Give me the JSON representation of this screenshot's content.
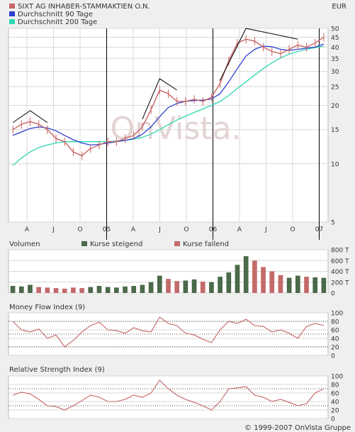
{
  "currency": "EUR",
  "copyright": "© 1999-2007 OnVista Gruppe",
  "watermark": "OnVista.",
  "colors": {
    "price": "#c86464",
    "ma90": "#2b3fcf",
    "ma200": "#2fd6b2",
    "rising": "#4a6a4a",
    "falling": "#c46a6a",
    "plot_bg": "#ffffff",
    "grid": "#d8d8d8"
  },
  "chart_data": [
    {
      "type": "line",
      "title": "",
      "legend": [
        {
          "label": "SIXT AG INHABER-STAMMAKTIEN O.N.",
          "color": "#c86464"
        },
        {
          "label": "Durchschnitt 90 Tage",
          "color": "#2b3fcf"
        },
        {
          "label": "Durchschnitt 200 Tage",
          "color": "#2fd6b2"
        }
      ],
      "y_scale": "log",
      "ylim": [
        5,
        50
      ],
      "y_ticks": [
        5,
        10,
        15,
        20,
        25,
        30,
        35,
        40,
        45,
        50
      ],
      "x_ticks": [
        "A",
        "J",
        "O",
        "05",
        "A",
        "J",
        "O",
        "06",
        "A",
        "J",
        "O",
        "07"
      ],
      "x": [
        "2004-01",
        "2004-02",
        "2004-03",
        "2004-04",
        "2004-05",
        "2004-06",
        "2004-07",
        "2004-08",
        "2004-09",
        "2004-10",
        "2004-11",
        "2004-12",
        "2005-01",
        "2005-02",
        "2005-03",
        "2005-04",
        "2005-05",
        "2005-06",
        "2005-07",
        "2005-08",
        "2005-09",
        "2005-10",
        "2005-11",
        "2005-12",
        "2006-01",
        "2006-02",
        "2006-03",
        "2006-04",
        "2006-05",
        "2006-06",
        "2006-07",
        "2006-08",
        "2006-09",
        "2006-10",
        "2006-11",
        "2006-12",
        "2007-01"
      ],
      "series": [
        {
          "name": "SIXT AG INHABER-STAMMAKTIEN O.N.",
          "values": [
            15,
            16,
            16.5,
            16,
            15,
            13.5,
            13,
            11.5,
            11,
            12,
            12.5,
            13,
            13,
            13.5,
            14,
            15.5,
            19,
            24,
            23,
            21,
            21,
            21.5,
            21,
            22,
            26,
            34,
            42,
            44,
            43,
            40,
            38,
            37,
            39,
            41,
            40,
            42,
            45
          ]
        },
        {
          "name": "Durchschnitt 90 Tage",
          "values": [
            14,
            14.6,
            15.2,
            15.5,
            15.3,
            14.8,
            14,
            13.3,
            12.8,
            12.5,
            12.6,
            12.8,
            13,
            13.2,
            13.5,
            14.2,
            15.5,
            17.5,
            19.5,
            20.5,
            21,
            21.2,
            21.3,
            21.6,
            23,
            26.5,
            31,
            36,
            39,
            40.5,
            40.2,
            39,
            38.5,
            39,
            39.5,
            40,
            41.5
          ]
        },
        {
          "name": "Durchschnitt 200 Tage",
          "values": [
            9.8,
            10.7,
            11.5,
            12.1,
            12.5,
            12.8,
            13,
            13,
            13,
            13,
            13,
            13,
            13.1,
            13.2,
            13.4,
            13.7,
            14.2,
            15,
            15.9,
            16.8,
            17.6,
            18.4,
            19.2,
            20,
            21,
            22.5,
            24.5,
            26.5,
            28.7,
            31,
            33.2,
            35.2,
            36.8,
            38,
            39,
            39.8,
            40.5
          ]
        }
      ],
      "trend_lines": [
        {
          "x": [
            "2004-01",
            "2004-03",
            "2004-05"
          ],
          "y": [
            16.3,
            18.8,
            16.3
          ]
        },
        {
          "x": [
            "2005-04",
            "2005-06",
            "2005-08"
          ],
          "y": [
            17,
            27.5,
            24
          ]
        },
        {
          "x": [
            "2006-01",
            "2006-04",
            "2006-10"
          ],
          "y": [
            27,
            50,
            44
          ]
        }
      ]
    },
    {
      "type": "bar",
      "title": "Volumen",
      "legend": [
        {
          "label": "Kurse steigend",
          "color": "#4a6a4a"
        },
        {
          "label": "Kurse fallend",
          "color": "#c46a6a"
        }
      ],
      "ylim": [
        0,
        800
      ],
      "y_ticks": [
        "800 T",
        "600 T",
        "400 T",
        "200 T",
        "0"
      ],
      "x": [
        "2004-01",
        "2004-02",
        "2004-03",
        "2004-04",
        "2004-05",
        "2004-06",
        "2004-07",
        "2004-08",
        "2004-09",
        "2004-10",
        "2004-11",
        "2004-12",
        "2005-01",
        "2005-02",
        "2005-03",
        "2005-04",
        "2005-05",
        "2005-06",
        "2005-07",
        "2005-08",
        "2005-09",
        "2005-10",
        "2005-11",
        "2005-12",
        "2006-01",
        "2006-02",
        "2006-03",
        "2006-04",
        "2006-05",
        "2006-06",
        "2006-07",
        "2006-08",
        "2006-09",
        "2006-10",
        "2006-11",
        "2006-12",
        "2007-01"
      ],
      "values": [
        130,
        120,
        150,
        110,
        100,
        90,
        80,
        100,
        90,
        110,
        130,
        110,
        100,
        120,
        130,
        150,
        200,
        320,
        260,
        220,
        230,
        250,
        210,
        200,
        300,
        380,
        520,
        680,
        600,
        480,
        400,
        330,
        280,
        320,
        300,
        290,
        280
      ]
    },
    {
      "type": "line",
      "title": "Money Flow Index (9)",
      "ylim": [
        0,
        100
      ],
      "y_ticks": [
        100,
        80,
        60,
        40,
        20,
        0
      ],
      "reference_lines": [
        80,
        50,
        20
      ],
      "x": [
        "2004-01",
        "2004-02",
        "2004-03",
        "2004-04",
        "2004-05",
        "2004-06",
        "2004-07",
        "2004-08",
        "2004-09",
        "2004-10",
        "2004-11",
        "2004-12",
        "2005-01",
        "2005-02",
        "2005-03",
        "2005-04",
        "2005-05",
        "2005-06",
        "2005-07",
        "2005-08",
        "2005-09",
        "2005-10",
        "2005-11",
        "2005-12",
        "2006-01",
        "2006-02",
        "2006-03",
        "2006-04",
        "2006-05",
        "2006-06",
        "2006-07",
        "2006-08",
        "2006-09",
        "2006-10",
        "2006-11",
        "2006-12",
        "2007-01"
      ],
      "values": [
        80,
        60,
        55,
        62,
        40,
        48,
        20,
        35,
        55,
        70,
        78,
        60,
        58,
        52,
        65,
        58,
        55,
        90,
        75,
        70,
        52,
        48,
        38,
        30,
        60,
        80,
        75,
        85,
        70,
        68,
        55,
        60,
        52,
        40,
        68,
        75,
        70
      ]
    },
    {
      "type": "line",
      "title": "Relative Strength Index (9)",
      "ylim": [
        0,
        100
      ],
      "y_ticks": [
        100,
        80,
        60,
        40,
        20,
        0
      ],
      "reference_lines": [
        70,
        30
      ],
      "x": [
        "2004-01",
        "2004-02",
        "2004-03",
        "2004-04",
        "2004-05",
        "2004-06",
        "2004-07",
        "2004-08",
        "2004-09",
        "2004-10",
        "2004-11",
        "2004-12",
        "2005-01",
        "2005-02",
        "2005-03",
        "2005-04",
        "2005-05",
        "2005-06",
        "2005-07",
        "2005-08",
        "2005-09",
        "2005-10",
        "2005-11",
        "2005-12",
        "2006-01",
        "2006-02",
        "2006-03",
        "2006-04",
        "2006-05",
        "2006-06",
        "2006-07",
        "2006-08",
        "2006-09",
        "2006-10",
        "2006-11",
        "2006-12",
        "2007-01"
      ],
      "values": [
        55,
        62,
        58,
        45,
        30,
        28,
        20,
        30,
        42,
        55,
        50,
        40,
        40,
        45,
        55,
        50,
        60,
        90,
        70,
        55,
        45,
        38,
        30,
        20,
        40,
        70,
        72,
        75,
        55,
        50,
        40,
        45,
        38,
        30,
        35,
        60,
        70
      ]
    }
  ]
}
